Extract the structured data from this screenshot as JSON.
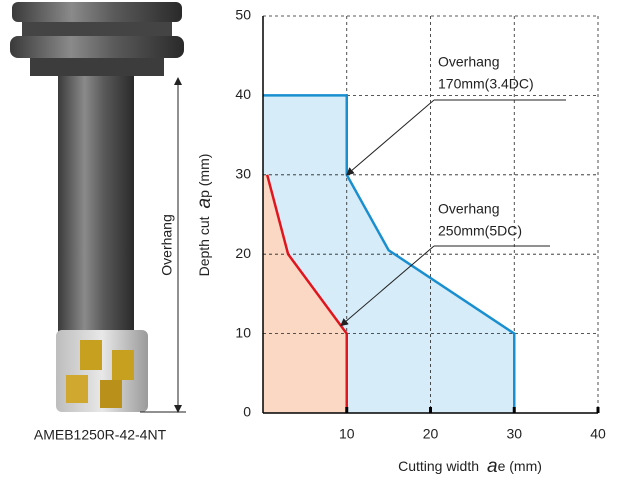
{
  "chart_data": {
    "type": "area",
    "caption": "AMEB1250R-42-4NT",
    "tool_label": "Overhang",
    "ylabel": [
      "Depth cut",
      "a",
      "p (mm)"
    ],
    "xlabel": [
      "Cutting width",
      "a",
      "e (mm)"
    ],
    "xlim": [
      0,
      40
    ],
    "ylim": [
      0,
      50
    ],
    "xticks": [
      10,
      20,
      30,
      40
    ],
    "yticks": [
      0,
      10,
      20,
      30,
      40,
      50
    ],
    "grid": true,
    "series": [
      {
        "color": "#1a8fd0",
        "fill": "#d6ecf8",
        "x": [
          0,
          10,
          10,
          15,
          30,
          30
        ],
        "values": [
          40,
          40,
          30,
          20.5,
          10,
          0
        ]
      },
      {
        "color": "#e0161e",
        "fill": "#fbd8c4",
        "x": [
          0.5,
          3,
          10,
          10
        ],
        "values": [
          30,
          20,
          10,
          0
        ]
      }
    ],
    "annotations": [
      {
        "lines": [
          "Overhang",
          "170mm(3.4DC)"
        ]
      },
      {
        "lines": [
          "Overhang",
          "250mm(5DC)"
        ]
      }
    ]
  }
}
